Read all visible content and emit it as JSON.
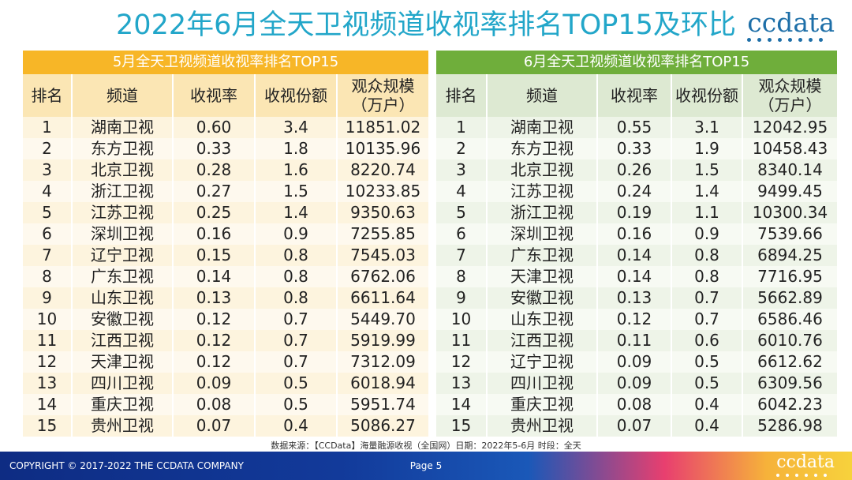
{
  "title": "2022年6月全天卫视频道收视率排名TOP15及环比",
  "logo": "ccdata",
  "left": {
    "heading": "5月全天卫视频道收视率排名TOP15",
    "columns": [
      "排名",
      "频道",
      "收视率",
      "收视份额",
      "观众规模（万户）"
    ],
    "rows": [
      [
        "1",
        "湖南卫视",
        "0.60",
        "3.4",
        "11851.02"
      ],
      [
        "2",
        "东方卫视",
        "0.33",
        "1.8",
        "10135.96"
      ],
      [
        "3",
        "北京卫视",
        "0.28",
        "1.6",
        "8220.74"
      ],
      [
        "4",
        "浙江卫视",
        "0.27",
        "1.5",
        "10233.85"
      ],
      [
        "5",
        "江苏卫视",
        "0.25",
        "1.4",
        "9350.63"
      ],
      [
        "6",
        "深圳卫视",
        "0.16",
        "0.9",
        "7255.85"
      ],
      [
        "7",
        "辽宁卫视",
        "0.15",
        "0.8",
        "7545.03"
      ],
      [
        "8",
        "广东卫视",
        "0.14",
        "0.8",
        "6762.06"
      ],
      [
        "9",
        "山东卫视",
        "0.13",
        "0.8",
        "6611.64"
      ],
      [
        "10",
        "安徽卫视",
        "0.12",
        "0.7",
        "5449.70"
      ],
      [
        "11",
        "江西卫视",
        "0.12",
        "0.7",
        "5919.99"
      ],
      [
        "12",
        "天津卫视",
        "0.12",
        "0.7",
        "7312.09"
      ],
      [
        "13",
        "四川卫视",
        "0.09",
        "0.5",
        "6018.94"
      ],
      [
        "14",
        "重庆卫视",
        "0.08",
        "0.5",
        "5951.74"
      ],
      [
        "15",
        "贵州卫视",
        "0.07",
        "0.4",
        "5086.27"
      ]
    ]
  },
  "right": {
    "heading": "6月全天卫视频道收视率排名TOP15",
    "columns": [
      "排名",
      "频道",
      "收视率",
      "收视份额",
      "观众规模（万户）"
    ],
    "rows": [
      [
        "1",
        "湖南卫视",
        "0.55",
        "3.1",
        "12042.95"
      ],
      [
        "2",
        "东方卫视",
        "0.33",
        "1.9",
        "10458.43"
      ],
      [
        "3",
        "北京卫视",
        "0.26",
        "1.5",
        "8340.14"
      ],
      [
        "4",
        "江苏卫视",
        "0.24",
        "1.4",
        "9499.45"
      ],
      [
        "5",
        "浙江卫视",
        "0.19",
        "1.1",
        "10300.34"
      ],
      [
        "6",
        "深圳卫视",
        "0.16",
        "0.9",
        "7539.66"
      ],
      [
        "7",
        "广东卫视",
        "0.14",
        "0.8",
        "6894.25"
      ],
      [
        "8",
        "天津卫视",
        "0.14",
        "0.8",
        "7716.95"
      ],
      [
        "9",
        "安徽卫视",
        "0.13",
        "0.7",
        "5662.89"
      ],
      [
        "10",
        "山东卫视",
        "0.12",
        "0.7",
        "6586.46"
      ],
      [
        "11",
        "江西卫视",
        "0.11",
        "0.6",
        "6010.76"
      ],
      [
        "12",
        "辽宁卫视",
        "0.09",
        "0.5",
        "6612.62"
      ],
      [
        "13",
        "四川卫视",
        "0.09",
        "0.5",
        "6309.56"
      ],
      [
        "14",
        "重庆卫视",
        "0.08",
        "0.4",
        "6042.23"
      ],
      [
        "15",
        "贵州卫视",
        "0.07",
        "0.4",
        "5286.98"
      ]
    ]
  },
  "source": "数据来源：【CCData】海量融源收视（全国网）日期：2022年5-6月  时段：全天",
  "footer": {
    "copyright": "COPYRIGHT © 2017-2022 THE CCDATA COMPANY",
    "page": "Page 5",
    "logo": "ccdata"
  },
  "colors": {
    "title": "#22a6c9",
    "left_header": "#f7b627",
    "right_header": "#6fae3b",
    "brand": "#1e6fa8"
  }
}
